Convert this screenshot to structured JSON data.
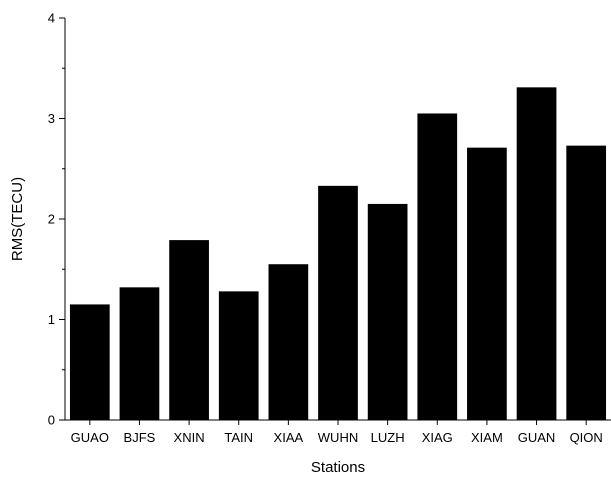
{
  "chart_data": {
    "type": "bar",
    "title": "",
    "xlabel": "Stations",
    "ylabel": "RMS(TECU)",
    "categories": [
      "GUAO",
      "BJFS",
      "XNIN",
      "TAIN",
      "XIAA",
      "WUHN",
      "LUZH",
      "XIAG",
      "XIAM",
      "GUAN",
      "QION"
    ],
    "values": [
      1.15,
      1.32,
      1.79,
      1.28,
      1.55,
      2.33,
      2.15,
      3.05,
      2.71,
      3.31,
      2.73
    ],
    "ylim": [
      0,
      4
    ],
    "yticks": [
      "0",
      "1",
      "2",
      "3",
      "4"
    ],
    "grid": false,
    "legend": "none",
    "bar_color": "#000000"
  }
}
